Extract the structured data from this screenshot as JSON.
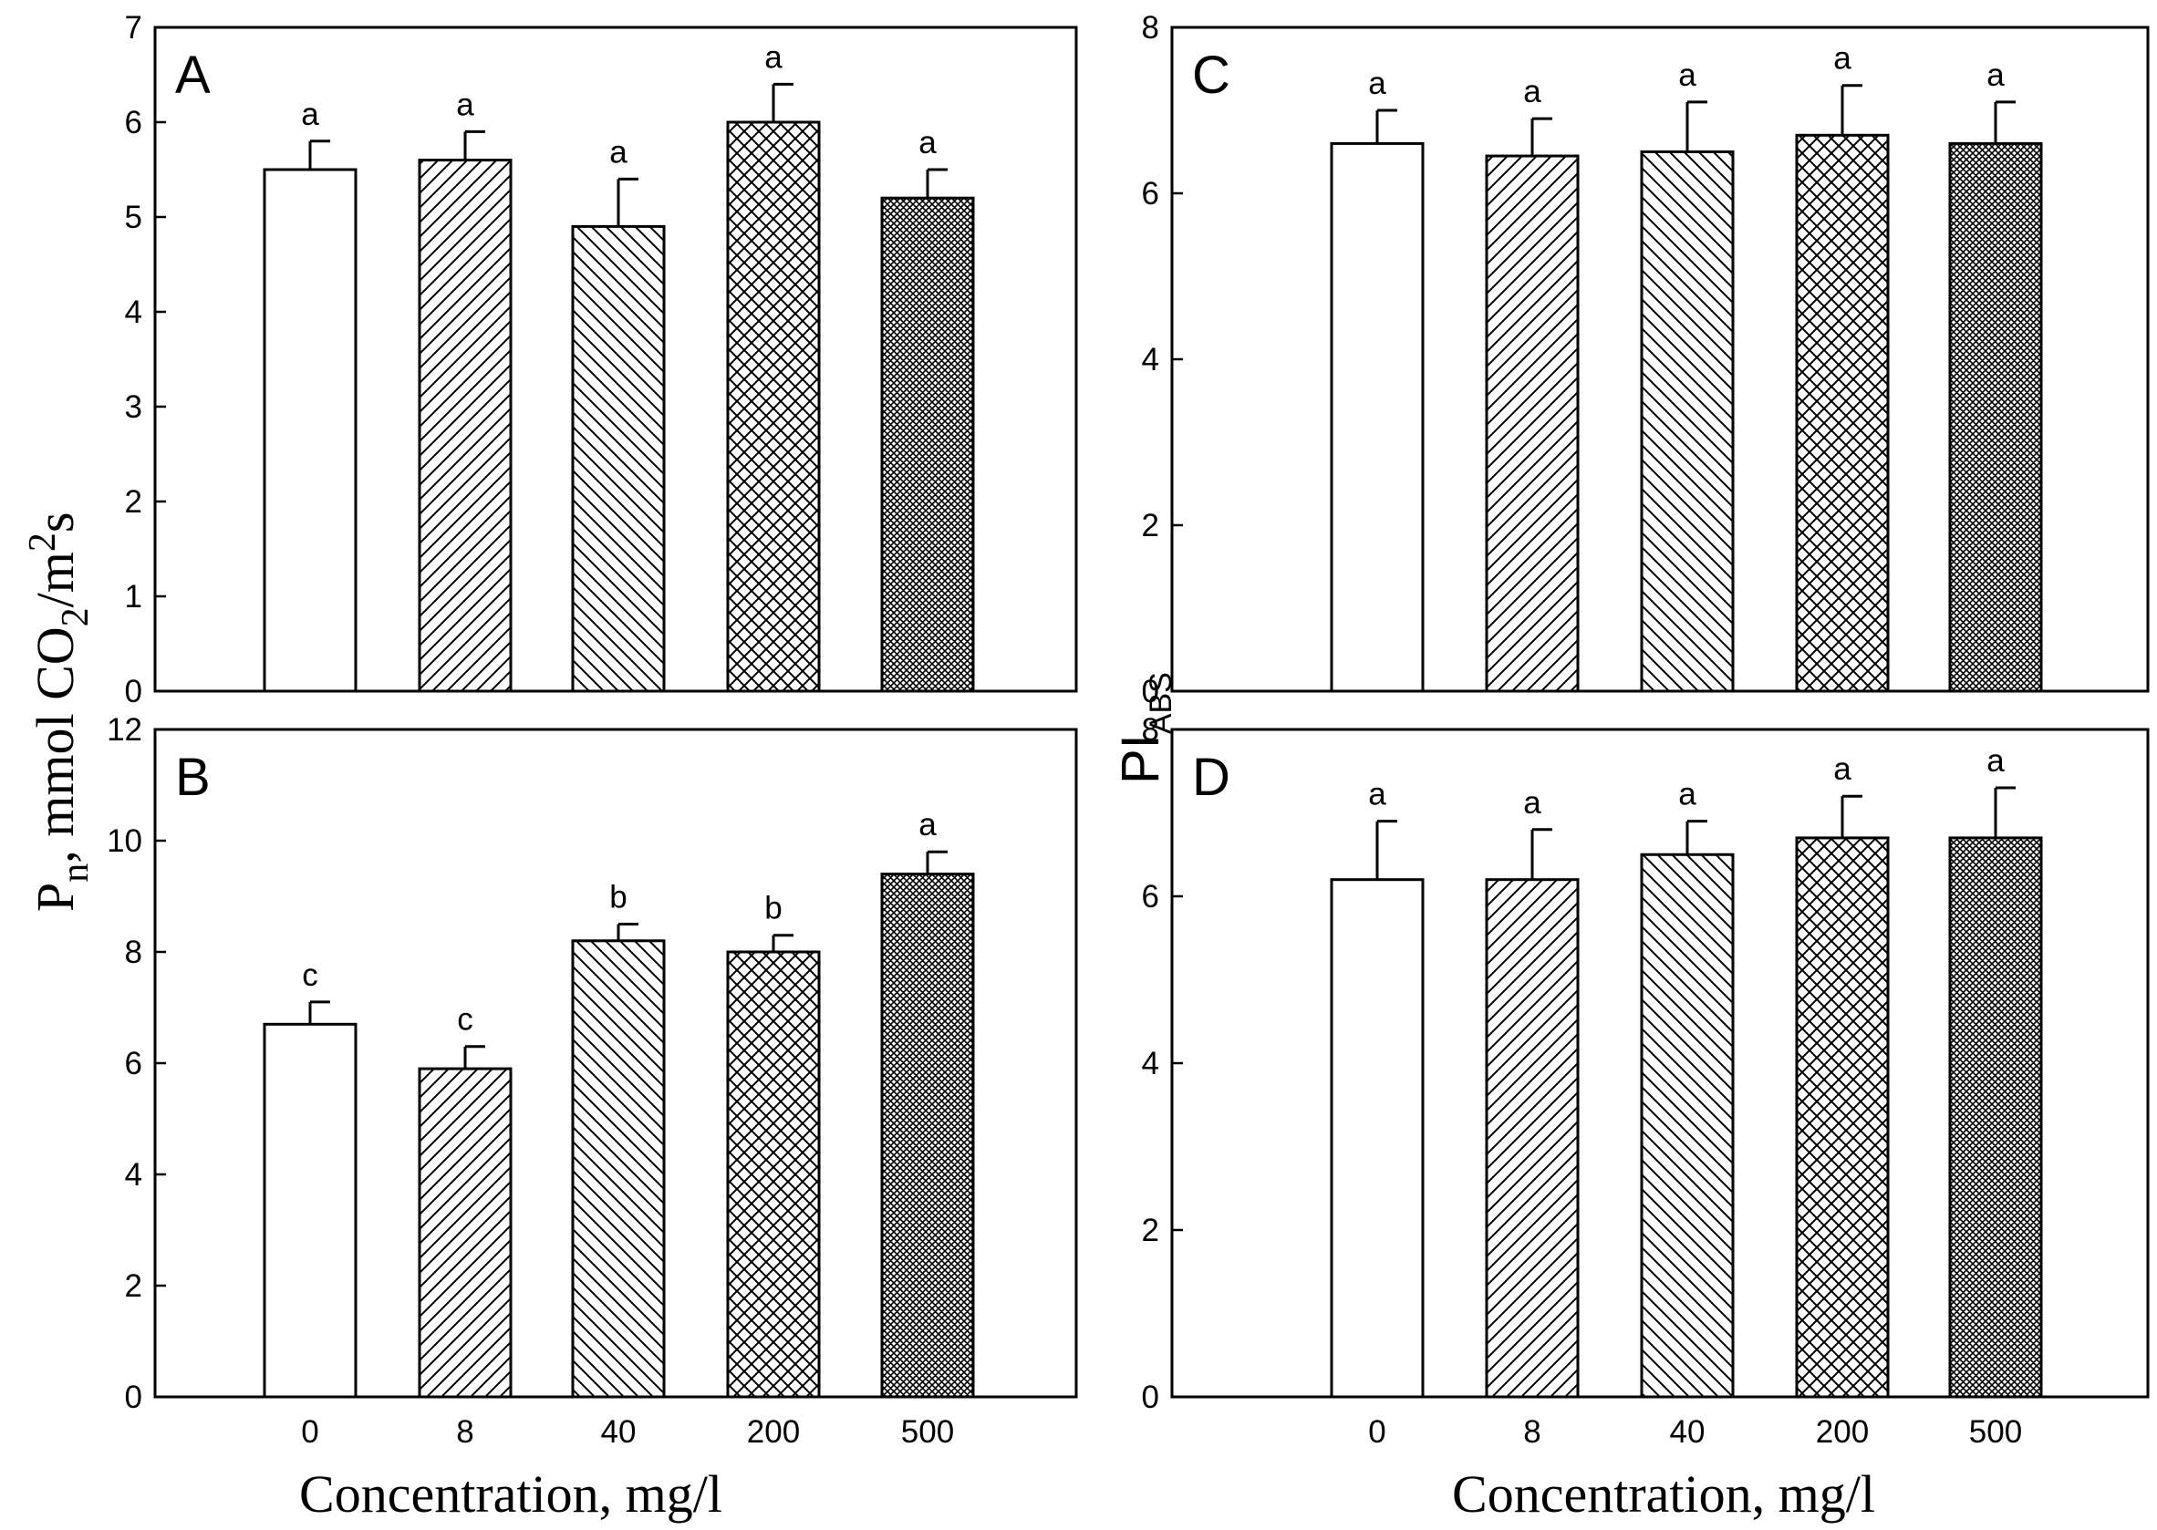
{
  "figure": {
    "left_ylabel": {
      "main": "P",
      "sub": "n",
      "rest": ",  mmol CO",
      "sub2": "2",
      "rest2": "/m",
      "sup": "2",
      "end": "s"
    },
    "right_ylabel": {
      "main": "PI",
      "sub": "ABS"
    },
    "xlabel": "Concentration, mg/l"
  },
  "chart_data": [
    {
      "panel": "A",
      "type": "bar",
      "categories": [
        "0",
        "8",
        "40",
        "200",
        "500"
      ],
      "values": [
        5.5,
        5.6,
        4.9,
        6.0,
        5.2
      ],
      "errors": [
        0.3,
        0.3,
        0.5,
        0.4,
        0.3
      ],
      "significance": [
        "a",
        "a",
        "a",
        "a",
        "a"
      ],
      "ylim": [
        0,
        7
      ],
      "yticks": [
        0,
        1,
        2,
        3,
        4,
        5,
        6,
        7
      ],
      "ylabel": "Pn, mmol CO2/m2s",
      "xlabel": ""
    },
    {
      "panel": "B",
      "type": "bar",
      "categories": [
        "0",
        "8",
        "40",
        "200",
        "500"
      ],
      "values": [
        6.7,
        5.9,
        8.2,
        8.0,
        9.4
      ],
      "errors": [
        0.4,
        0.4,
        0.3,
        0.3,
        0.4
      ],
      "significance": [
        "c",
        "c",
        "b",
        "b",
        "a"
      ],
      "ylim": [
        0,
        12
      ],
      "yticks": [
        0,
        2,
        4,
        6,
        8,
        10,
        12
      ],
      "ylabel": "Pn, mmol CO2/m2s",
      "xlabel": "Concentration, mg/l"
    },
    {
      "panel": "C",
      "type": "bar",
      "categories": [
        "0",
        "8",
        "40",
        "200",
        "500"
      ],
      "values": [
        6.6,
        6.45,
        6.5,
        6.7,
        6.6
      ],
      "errors": [
        0.4,
        0.45,
        0.6,
        0.6,
        0.5
      ],
      "significance": [
        "a",
        "a",
        "a",
        "a",
        "a"
      ],
      "ylim": [
        0,
        8
      ],
      "yticks": [
        0,
        2,
        4,
        6,
        8
      ],
      "ylabel": "PIABS",
      "xlabel": ""
    },
    {
      "panel": "D",
      "type": "bar",
      "categories": [
        "0",
        "8",
        "40",
        "200",
        "500"
      ],
      "values": [
        6.2,
        6.2,
        6.5,
        6.7,
        6.7
      ],
      "errors": [
        0.7,
        0.6,
        0.4,
        0.5,
        0.6
      ],
      "significance": [
        "a",
        "a",
        "a",
        "a",
        "a"
      ],
      "ylim": [
        0,
        8
      ],
      "yticks": [
        0,
        2,
        4,
        6,
        8
      ],
      "ylabel": "PIABS",
      "xlabel": "Concentration, mg/l"
    }
  ]
}
